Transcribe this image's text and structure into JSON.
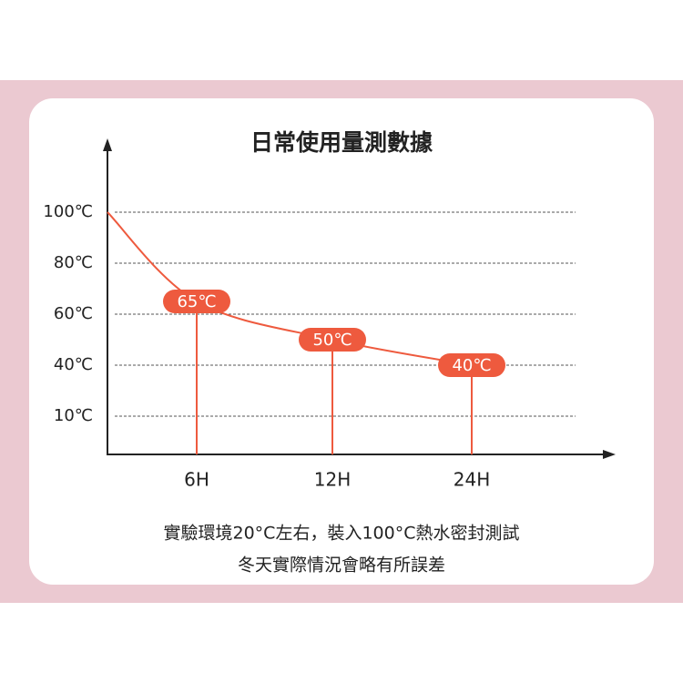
{
  "chart_data": {
    "type": "line",
    "title": "日常使用量測數據",
    "notes": [
      "實驗環境20°C左右，裝入100°C熱水密封測試",
      "冬天實際情況會略有所誤差"
    ],
    "categories": [
      null,
      "6H",
      "12H",
      "24H"
    ],
    "values": [
      100,
      65,
      50,
      40
    ],
    "value_labels": [
      null,
      "65℃",
      "50℃",
      "40℃"
    ],
    "color": "#ee5a3e",
    "yticks": [
      {
        "value": 100,
        "label": "100℃"
      },
      {
        "value": 80,
        "label": "80℃"
      },
      {
        "value": 60,
        "label": "60℃"
      },
      {
        "value": 40,
        "label": "40℃"
      },
      {
        "value": 10,
        "label": "10℃"
      }
    ],
    "grid": true
  }
}
